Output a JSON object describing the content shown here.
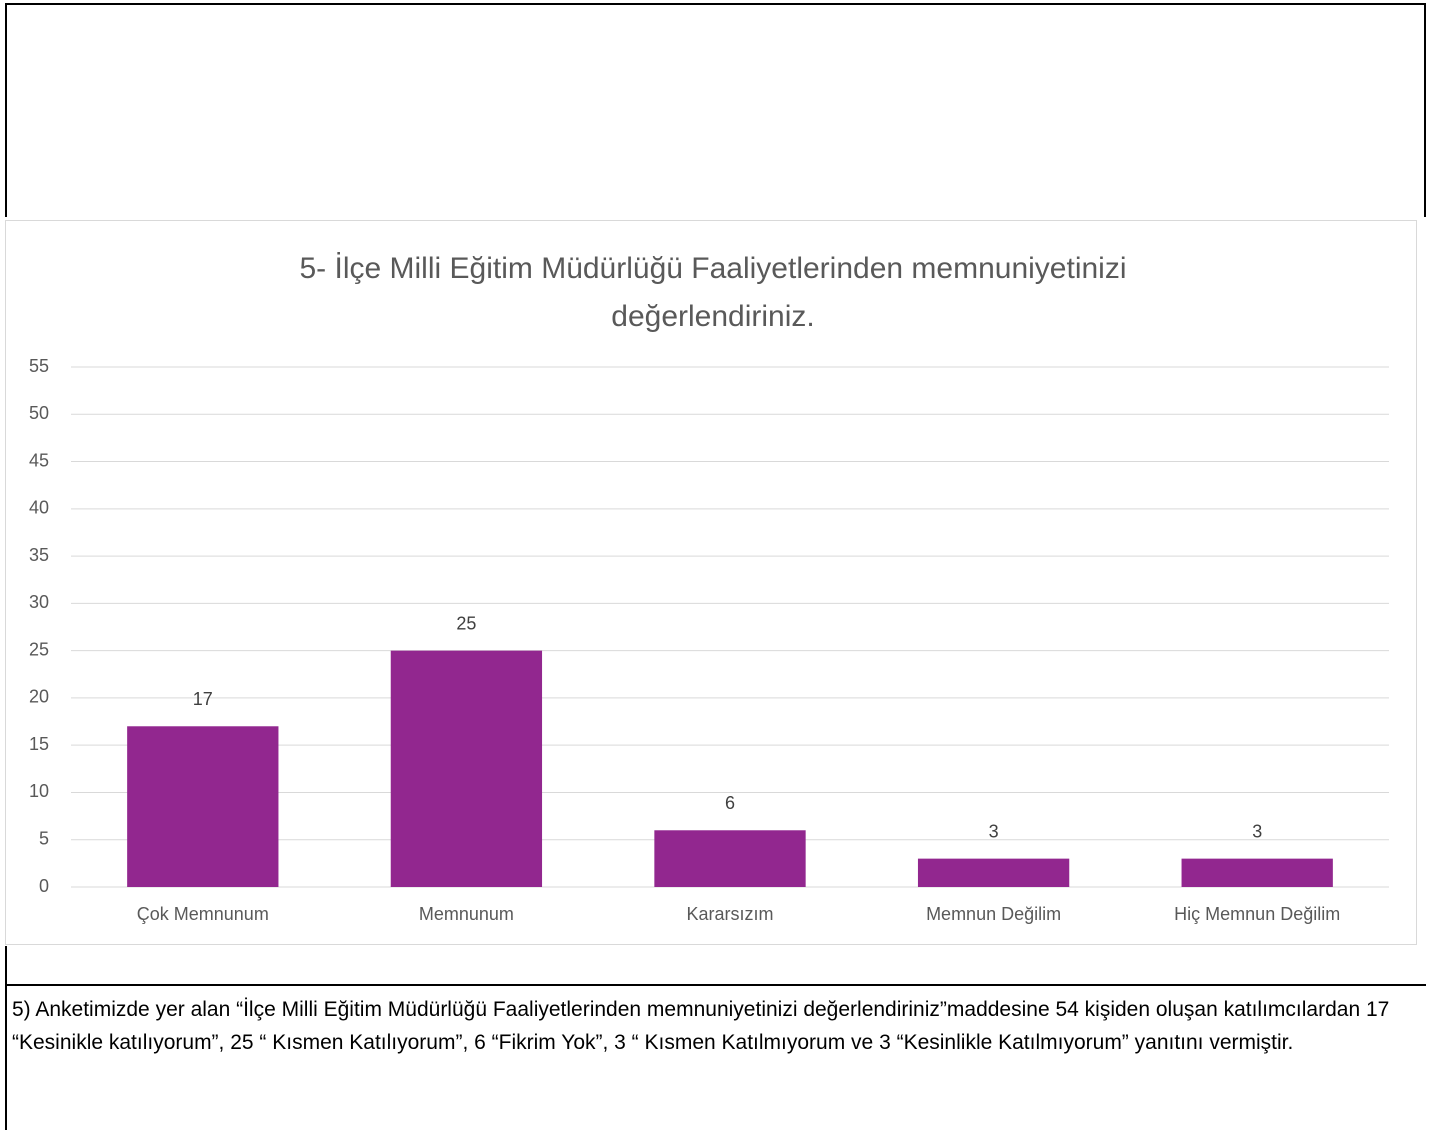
{
  "chart_data": {
    "type": "bar",
    "title": "5- İlçe Milli Eğitim Müdürlüğü Faaliyetlerinden memnuniyetinizi değerlendiriniz.",
    "categories": [
      "Çok Memnunum",
      "Memnunum",
      "Kararsızım",
      "Memnun Değilim",
      "Hiç Memnun Değilim"
    ],
    "values": [
      17,
      25,
      6,
      3,
      3
    ],
    "color": "#92278f",
    "ylim": [
      0,
      55
    ],
    "yticks": [
      0,
      5,
      10,
      15,
      20,
      25,
      30,
      35,
      40,
      45,
      50,
      55
    ],
    "grid": true
  },
  "paragraph": "5) Anketimizde yer alan “İlçe Milli Eğitim Müdürlüğü Faaliyetlerinden memnuniyetinizi değerlendiriniz”maddesine 54 kişiden oluşan katılımcılardan 17 “Kesinikle katılıyorum”, 25 “ Kısmen Katılıyorum”, 6 “Fikrim Yok”, 3 “ Kısmen Katılmıyorum ve 3 “Kesinlikle Katılmıyorum” yanıtını vermiştir."
}
